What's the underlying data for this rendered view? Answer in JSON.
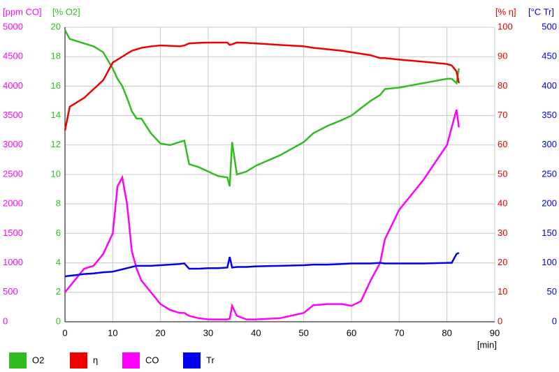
{
  "chart_data": {
    "type": "line",
    "xlabel": "[min]",
    "xlim": [
      0,
      90
    ],
    "xticks": [
      0,
      10,
      20,
      30,
      40,
      50,
      60,
      70,
      80,
      90
    ],
    "grid": true,
    "x": [
      0,
      1,
      2,
      4,
      6,
      8,
      10,
      11,
      12,
      13,
      14,
      15,
      16,
      18,
      20,
      22,
      24,
      25,
      26,
      28,
      30,
      32,
      34,
      34.5,
      35,
      36,
      38,
      40,
      45,
      50,
      52,
      55,
      58,
      60,
      62,
      64,
      66,
      67,
      70,
      75,
      80,
      81,
      82,
      82.5
    ],
    "series": [
      {
        "name": "O2",
        "color": "#33bb22",
        "axis_label": "[% O2]",
        "ylim": [
          0,
          20
        ],
        "yticks": [
          0,
          2,
          4,
          6,
          8,
          10,
          12,
          14,
          16,
          18,
          20
        ],
        "values": [
          19.8,
          19.2,
          19.1,
          18.9,
          18.7,
          18.3,
          17.2,
          16.5,
          16.0,
          15.2,
          14.3,
          13.8,
          13.8,
          12.8,
          12.1,
          12.0,
          12.2,
          12.3,
          10.7,
          10.5,
          10.2,
          9.9,
          9.8,
          9.2,
          12.2,
          10.0,
          10.2,
          10.6,
          11.3,
          12.2,
          12.8,
          13.3,
          13.7,
          14.0,
          14.5,
          15.0,
          15.4,
          15.8,
          15.9,
          16.2,
          16.5,
          16.5,
          16.2,
          17.2
        ]
      },
      {
        "name": "η",
        "color": "#ee0000",
        "axis_label": "[% η]",
        "ylim": [
          0,
          100
        ],
        "yticks": [
          0,
          10,
          20,
          30,
          40,
          50,
          60,
          70,
          80,
          90,
          100
        ],
        "values": [
          65,
          73,
          74,
          76,
          79,
          82,
          88,
          89,
          90,
          91,
          92,
          92.5,
          93,
          93.5,
          93.8,
          93.7,
          93.5,
          93.8,
          94.5,
          94.7,
          94.8,
          94.8,
          94.8,
          94,
          94.2,
          94.8,
          94.7,
          94.5,
          94,
          93.5,
          93,
          92.5,
          92,
          91.5,
          91,
          90.5,
          89.5,
          89.5,
          89,
          88.3,
          87.5,
          87,
          85,
          81
        ]
      },
      {
        "name": "CO",
        "color": "#ff00ff",
        "axis_label": "[ppm CO]",
        "ylim": [
          0,
          5000
        ],
        "yticks": [
          0,
          500,
          1000,
          1500,
          2000,
          2500,
          3000,
          3500,
          4000,
          4500,
          5000
        ],
        "values": [
          500,
          600,
          700,
          900,
          950,
          1150,
          1500,
          2300,
          2450,
          2000,
          1200,
          900,
          700,
          500,
          300,
          200,
          150,
          150,
          100,
          60,
          40,
          40,
          40,
          50,
          270,
          100,
          40,
          40,
          60,
          150,
          280,
          300,
          300,
          270,
          350,
          700,
          1000,
          1400,
          1900,
          2400,
          3000,
          3300,
          3600,
          3300
        ]
      },
      {
        "name": "Tr",
        "color": "#0000ee",
        "axis_label": "[°C Tr]",
        "ylim": [
          0,
          500
        ],
        "yticks": [
          0,
          50,
          100,
          150,
          200,
          250,
          300,
          350,
          400,
          450,
          500
        ],
        "values": [
          77,
          78,
          79,
          81,
          82,
          84,
          85,
          87,
          89,
          91,
          93,
          95,
          95,
          95,
          96,
          97,
          98,
          99,
          90,
          90,
          91,
          91,
          92,
          110,
          92,
          93,
          93,
          94,
          95,
          96,
          97,
          97,
          98,
          99,
          99,
          99,
          100,
          99,
          99,
          99,
          100,
          100,
          115,
          117
        ]
      }
    ]
  }
}
